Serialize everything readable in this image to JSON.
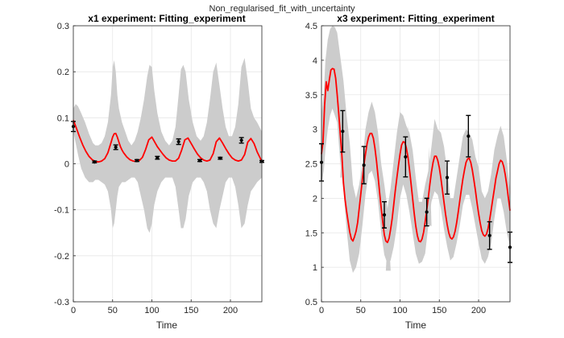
{
  "figure_title": "Non_regularised_fit_with_uncertainty",
  "chart_data": [
    {
      "type": "line",
      "title": "x1 experiment: Fitting_experiment",
      "xlabel": "Time",
      "ylabel": "",
      "xlim": [
        0,
        240
      ],
      "ylim": [
        -0.3,
        0.3
      ],
      "xticks": [
        "0",
        "50",
        "100",
        "150",
        "200"
      ],
      "yticks": [
        "-0.3",
        "-0.2",
        "-0.1",
        "0",
        "0.1",
        "0.2",
        "0.3"
      ],
      "grid": true,
      "legend": "none",
      "colors": {
        "fit": "#ff0000",
        "band": "#cccccc",
        "data": "#000000",
        "grid": "#e6e6e6"
      },
      "period": 26.7,
      "first_peak": 54,
      "series": [
        {
          "type": "fit",
          "x": [
            0,
            4,
            8,
            12,
            16,
            20,
            24,
            28,
            32,
            36,
            40,
            44,
            48,
            50,
            52,
            54,
            56,
            58,
            60,
            62,
            64,
            68,
            72,
            76,
            80,
            84,
            88,
            92,
            96,
            100,
            104,
            107,
            110,
            114,
            118,
            122,
            126,
            130,
            134,
            138,
            142,
            146,
            150,
            154,
            158,
            162,
            166,
            170,
            174,
            178,
            182,
            186,
            190,
            194,
            198,
            202,
            206,
            210,
            214,
            218,
            222,
            226,
            230,
            234,
            240
          ],
          "y": [
            0.095,
            0.077,
            0.058,
            0.041,
            0.027,
            0.016,
            0.009,
            0.005,
            0.004,
            0.006,
            0.011,
            0.024,
            0.046,
            0.058,
            0.065,
            0.066,
            0.058,
            0.047,
            0.037,
            0.03,
            0.024,
            0.015,
            0.009,
            0.006,
            0.005,
            0.007,
            0.014,
            0.031,
            0.052,
            0.058,
            0.046,
            0.037,
            0.03,
            0.021,
            0.013,
            0.008,
            0.006,
            0.006,
            0.012,
            0.03,
            0.052,
            0.056,
            0.044,
            0.032,
            0.021,
            0.013,
            0.008,
            0.006,
            0.008,
            0.022,
            0.048,
            0.056,
            0.045,
            0.033,
            0.022,
            0.013,
            0.008,
            0.006,
            0.008,
            0.02,
            0.047,
            0.055,
            0.044,
            0.026,
            0.005
          ]
        },
        {
          "type": "band",
          "x": [
            0,
            3,
            6,
            10,
            15,
            20,
            25,
            28,
            32,
            36,
            40,
            44,
            48,
            50,
            52,
            54,
            56,
            58,
            62,
            66,
            70,
            74,
            78,
            82,
            86,
            90,
            94,
            97,
            100,
            103,
            107,
            112,
            117,
            122,
            126,
            130,
            134,
            137,
            140,
            143,
            147,
            152,
            157,
            162,
            166,
            170,
            174,
            178,
            182,
            186,
            190,
            194,
            198,
            202,
            206,
            210,
            214,
            218,
            222,
            226,
            230,
            234,
            240
          ],
          "upper": [
            0.12,
            0.13,
            0.125,
            0.11,
            0.09,
            0.065,
            0.045,
            0.04,
            0.04,
            0.045,
            0.06,
            0.09,
            0.15,
            0.21,
            0.225,
            0.2,
            0.15,
            0.12,
            0.09,
            0.07,
            0.05,
            0.04,
            0.05,
            0.07,
            0.1,
            0.14,
            0.19,
            0.215,
            0.21,
            0.16,
            0.11,
            0.07,
            0.05,
            0.04,
            0.05,
            0.08,
            0.15,
            0.205,
            0.215,
            0.2,
            0.14,
            0.09,
            0.06,
            0.05,
            0.06,
            0.09,
            0.14,
            0.2,
            0.22,
            0.17,
            0.12,
            0.08,
            0.06,
            0.06,
            0.08,
            0.13,
            0.21,
            0.23,
            0.18,
            0.12,
            0.1,
            0.09,
            0.07
          ],
          "lower": [
            0.07,
            0.045,
            0.02,
            -0.01,
            -0.03,
            -0.04,
            -0.04,
            -0.035,
            -0.035,
            -0.04,
            -0.045,
            -0.06,
            -0.1,
            -0.14,
            -0.13,
            -0.1,
            -0.07,
            -0.05,
            -0.04,
            -0.04,
            -0.035,
            -0.03,
            -0.03,
            -0.04,
            -0.07,
            -0.1,
            -0.14,
            -0.15,
            -0.13,
            -0.09,
            -0.06,
            -0.04,
            -0.03,
            -0.03,
            -0.03,
            -0.05,
            -0.1,
            -0.14,
            -0.14,
            -0.12,
            -0.07,
            -0.04,
            -0.03,
            -0.03,
            -0.04,
            -0.06,
            -0.1,
            -0.13,
            -0.14,
            -0.1,
            -0.07,
            -0.04,
            -0.03,
            -0.03,
            -0.05,
            -0.09,
            -0.14,
            -0.13,
            -0.09,
            -0.06,
            -0.05,
            -0.04,
            -0.03
          ]
        },
        {
          "type": "data",
          "x": [
            0,
            27,
            54,
            81,
            107,
            134,
            161,
            187,
            214,
            240
          ],
          "y": [
            0.081,
            0.004,
            0.036,
            0.007,
            0.013,
            0.048,
            0.007,
            0.012,
            0.051,
            0.005
          ],
          "err": [
            0.011,
            0.002,
            0.005,
            0.002,
            0.003,
            0.006,
            0.002,
            0.002,
            0.006,
            0.002
          ]
        }
      ]
    },
    {
      "type": "line",
      "title": "x3 experiment: Fitting_experiment",
      "xlabel": "Time",
      "ylabel": "",
      "xlim": [
        0,
        240
      ],
      "ylim": [
        0.5,
        4.5
      ],
      "xticks": [
        "0",
        "50",
        "100",
        "150",
        "200"
      ],
      "yticks": [
        "0.5",
        "1",
        "1.5",
        "2",
        "2.5",
        "3",
        "3.5",
        "4",
        "4.5"
      ],
      "grid": true,
      "legend": "none",
      "colors": {
        "fit": "#ff0000",
        "band": "#cccccc",
        "data": "#000000",
        "grid": "#e6e6e6"
      },
      "series": [
        {
          "type": "fit",
          "x": [
            0,
            2,
            4,
            6,
            8,
            10,
            12,
            14,
            16,
            18,
            20,
            22,
            24,
            26,
            28,
            30,
            32,
            34,
            36,
            38,
            40,
            42,
            44,
            46,
            48,
            50,
            52,
            54,
            56,
            58,
            60,
            62,
            64,
            66,
            68,
            70,
            72,
            74,
            76,
            78,
            80,
            82,
            84,
            86,
            88,
            90,
            92,
            94,
            96,
            98,
            100,
            102,
            104,
            106,
            108,
            110,
            112,
            114,
            116,
            118,
            120,
            122,
            124,
            126,
            128,
            130,
            132,
            134,
            136,
            138,
            140,
            142,
            144,
            146,
            148,
            150,
            152,
            154,
            156,
            158,
            160,
            162,
            164,
            166,
            168,
            170,
            172,
            174,
            176,
            178,
            180,
            182,
            184,
            186,
            188,
            190,
            192,
            194,
            196,
            198,
            200,
            202,
            204,
            206,
            208,
            210,
            212,
            214,
            216,
            218,
            220,
            222,
            224,
            226,
            228,
            230,
            232,
            234,
            236,
            238,
            240
          ],
          "y": [
            2.64,
            2.81,
            3.35,
            3.69,
            3.56,
            3.72,
            3.86,
            3.88,
            3.87,
            3.74,
            3.5,
            3.23,
            2.92,
            2.61,
            2.22,
            1.98,
            1.81,
            1.66,
            1.51,
            1.41,
            1.38,
            1.44,
            1.52,
            1.65,
            1.85,
            2.06,
            2.27,
            2.48,
            2.64,
            2.79,
            2.89,
            2.94,
            2.94,
            2.87,
            2.73,
            2.54,
            2.32,
            2.09,
            1.86,
            1.65,
            1.47,
            1.38,
            1.36,
            1.42,
            1.55,
            1.71,
            1.91,
            2.11,
            2.3,
            2.48,
            2.64,
            2.77,
            2.82,
            2.81,
            2.73,
            2.6,
            2.42,
            2.22,
            2.0,
            1.79,
            1.6,
            1.46,
            1.38,
            1.37,
            1.41,
            1.51,
            1.66,
            1.83,
            2.01,
            2.2,
            2.38,
            2.52,
            2.61,
            2.61,
            2.55,
            2.44,
            2.29,
            2.12,
            1.94,
            1.77,
            1.62,
            1.5,
            1.43,
            1.41,
            1.44,
            1.52,
            1.64,
            1.79,
            1.96,
            2.12,
            2.28,
            2.41,
            2.52,
            2.57,
            2.58,
            2.52,
            2.41,
            2.27,
            2.11,
            1.94,
            1.78,
            1.64,
            1.53,
            1.47,
            1.45,
            1.48,
            1.56,
            1.68,
            1.83,
            1.98,
            2.13,
            2.29,
            2.39,
            2.5,
            2.55,
            2.53,
            2.46,
            2.34,
            2.18,
            2.0,
            1.82
          ]
        },
        {
          "type": "band",
          "x": [
            0,
            3,
            5,
            8,
            11,
            14,
            17,
            20,
            24,
            28,
            32,
            36,
            40,
            44,
            48,
            52,
            56,
            60,
            64,
            68,
            72,
            76,
            80,
            84,
            88,
            92,
            96,
            100,
            104,
            108,
            112,
            116,
            120,
            124,
            128,
            132,
            136,
            140,
            144,
            148,
            152,
            156,
            160,
            164,
            168,
            172,
            176,
            180,
            184,
            188,
            192,
            196,
            200,
            204,
            208,
            212,
            216,
            220,
            224,
            228,
            232,
            236,
            240
          ],
          "upper": [
            3.2,
            3.55,
            4.0,
            4.3,
            4.45,
            4.5,
            4.48,
            4.4,
            4.05,
            3.7,
            3.2,
            2.8,
            2.2,
            2.0,
            2.2,
            2.5,
            3.0,
            3.25,
            3.4,
            3.25,
            2.95,
            2.5,
            2.2,
            1.85,
            2.15,
            2.55,
            2.95,
            3.25,
            3.2,
            3.05,
            2.95,
            2.7,
            2.3,
            1.95,
            1.95,
            2.2,
            2.4,
            2.75,
            3.15,
            3.0,
            2.95,
            2.75,
            2.4,
            2.0,
            2.0,
            2.3,
            2.6,
            2.9,
            3.0,
            2.95,
            2.85,
            2.6,
            2.45,
            2.1,
            2.0,
            2.1,
            2.35,
            2.7,
            2.9,
            3.05,
            2.9,
            2.55,
            2.1
          ],
          "lower": [
            2.2,
            2.4,
            2.7,
            3.0,
            3.2,
            3.3,
            3.2,
            3.1,
            2.5,
            2.1,
            1.55,
            1.1,
            0.92,
            1.0,
            1.2,
            1.6,
            2.05,
            2.35,
            2.4,
            2.25,
            1.95,
            1.5,
            1.18,
            1.05,
            1.1,
            1.3,
            1.6,
            2.0,
            2.2,
            2.05,
            1.8,
            1.5,
            1.2,
            1.05,
            1.08,
            1.2,
            1.6,
            1.95,
            2.1,
            2.05,
            1.85,
            1.55,
            1.3,
            1.1,
            1.15,
            1.35,
            1.6,
            1.9,
            2.05,
            2.05,
            1.85,
            1.6,
            1.35,
            1.12,
            1.05,
            1.15,
            1.35,
            1.7,
            2.0,
            2.0,
            1.8,
            1.5,
            1.3
          ],
          "spikes": [
            {
              "x": 27,
              "y_top": 3.0,
              "y_bottom": 2.3
            },
            {
              "x": 85,
              "y_top": 1.6,
              "y_bottom": 0.95
            },
            {
              "x": 110,
              "y_top": 3.05,
              "y_bottom": 2.4
            },
            {
              "x": 137,
              "y_top": 2.75,
              "y_bottom": 1.6
            }
          ]
        },
        {
          "type": "data",
          "x": [
            0,
            27,
            54,
            80,
            107,
            134,
            160,
            187,
            214,
            240
          ],
          "y": [
            2.52,
            2.97,
            2.48,
            1.76,
            2.6,
            1.8,
            2.3,
            2.9,
            1.46,
            1.29
          ],
          "err": [
            0.27,
            0.3,
            0.27,
            0.19,
            0.29,
            0.2,
            0.24,
            0.3,
            0.2,
            0.22
          ]
        }
      ]
    }
  ]
}
